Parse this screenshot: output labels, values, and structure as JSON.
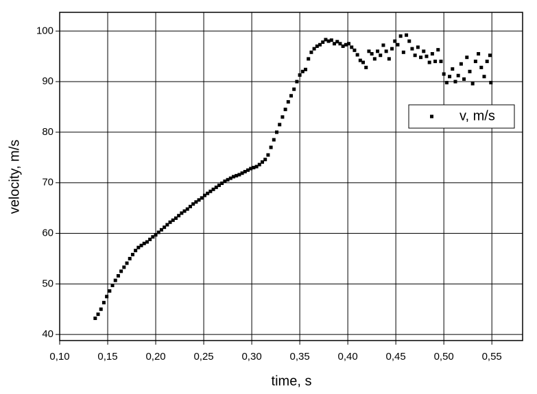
{
  "chart_data": {
    "type": "scatter",
    "xlabel": "time, s",
    "ylabel": "velocity, m/s",
    "xlim": [
      0.1,
      0.582
    ],
    "ylim": [
      38.8,
      103.7
    ],
    "xticks": [
      {
        "value": 0.1,
        "label": "0,10"
      },
      {
        "value": 0.15,
        "label": "0,15"
      },
      {
        "value": 0.2,
        "label": "0,20"
      },
      {
        "value": 0.25,
        "label": "0,25"
      },
      {
        "value": 0.3,
        "label": "0,30"
      },
      {
        "value": 0.35,
        "label": "0,35"
      },
      {
        "value": 0.4,
        "label": "0,40"
      },
      {
        "value": 0.45,
        "label": "0,45"
      },
      {
        "value": 0.5,
        "label": "0,50"
      },
      {
        "value": 0.55,
        "label": "0,55"
      }
    ],
    "yticks": [
      40,
      50,
      60,
      70,
      80,
      90,
      100
    ],
    "grid": true,
    "legend": "upper right",
    "series": [
      {
        "name": "v, m/s",
        "color": "#000000",
        "x": [
          0.137,
          0.14,
          0.143,
          0.146,
          0.149,
          0.152,
          0.155,
          0.158,
          0.161,
          0.164,
          0.167,
          0.17,
          0.173,
          0.176,
          0.179,
          0.182,
          0.185,
          0.188,
          0.191,
          0.194,
          0.197,
          0.2,
          0.203,
          0.206,
          0.209,
          0.212,
          0.215,
          0.218,
          0.221,
          0.224,
          0.227,
          0.23,
          0.233,
          0.236,
          0.239,
          0.242,
          0.245,
          0.248,
          0.251,
          0.254,
          0.257,
          0.26,
          0.263,
          0.266,
          0.269,
          0.272,
          0.275,
          0.278,
          0.281,
          0.284,
          0.287,
          0.29,
          0.293,
          0.296,
          0.299,
          0.302,
          0.305,
          0.308,
          0.311,
          0.314,
          0.317,
          0.32,
          0.323,
          0.326,
          0.329,
          0.332,
          0.335,
          0.338,
          0.341,
          0.344,
          0.347,
          0.35,
          0.353,
          0.356,
          0.359,
          0.362,
          0.365,
          0.368,
          0.371,
          0.374,
          0.377,
          0.38,
          0.383,
          0.386,
          0.389,
          0.392,
          0.395,
          0.398,
          0.401,
          0.404,
          0.407,
          0.41,
          0.413,
          0.416,
          0.419,
          0.422,
          0.425,
          0.428,
          0.431,
          0.434,
          0.437,
          0.44,
          0.443,
          0.446,
          0.449,
          0.452,
          0.455,
          0.458,
          0.461,
          0.464,
          0.467,
          0.47,
          0.473,
          0.476,
          0.479,
          0.482,
          0.485,
          0.488,
          0.491,
          0.494,
          0.497,
          0.5,
          0.503,
          0.506,
          0.509,
          0.512,
          0.515,
          0.518,
          0.521,
          0.524,
          0.527,
          0.53,
          0.533,
          0.536,
          0.539,
          0.542,
          0.545,
          0.548,
          0.549
        ],
        "values": [
          43.2,
          44,
          45,
          46.3,
          47.5,
          48.6,
          49.7,
          50.7,
          51.6,
          52.5,
          53.3,
          54.1,
          55,
          55.8,
          56.6,
          57.2,
          57.6,
          58,
          58.3,
          58.8,
          59.3,
          59.7,
          60.2,
          60.7,
          61.2,
          61.7,
          62.2,
          62.6,
          63,
          63.5,
          64,
          64.4,
          64.8,
          65.3,
          65.8,
          66.2,
          66.6,
          67,
          67.5,
          67.9,
          68.3,
          68.7,
          69.1,
          69.5,
          69.9,
          70.3,
          70.6,
          70.9,
          71.2,
          71.4,
          71.6,
          71.9,
          72.2,
          72.5,
          72.8,
          73,
          73.2,
          73.6,
          74.1,
          74.6,
          75.5,
          77,
          78.5,
          80,
          81.5,
          83,
          84.5,
          86,
          87.2,
          88.5,
          90,
          91.3,
          92,
          92.4,
          94.5,
          95.8,
          96.5,
          97,
          97.3,
          97.8,
          98.3,
          98,
          98.2,
          97.5,
          97.9,
          97.5,
          97,
          97.3,
          97.5,
          96.8,
          96.2,
          95.3,
          94.2,
          93.8,
          92.8,
          96,
          95.5,
          94.5,
          96,
          95.2,
          97.2,
          96,
          94.5,
          96.5,
          98,
          97.3,
          99,
          95.8,
          99.2,
          98,
          96.5,
          95.2,
          96.8,
          94.8,
          96,
          95,
          93.8,
          95.5,
          94,
          96.3,
          94,
          91.5,
          89.8,
          91,
          92.5,
          90,
          91.2,
          93.5,
          90.5,
          94.8,
          92,
          89.6,
          94,
          95.5,
          92.8,
          91,
          94,
          95.2,
          89.8
        ]
      }
    ]
  }
}
